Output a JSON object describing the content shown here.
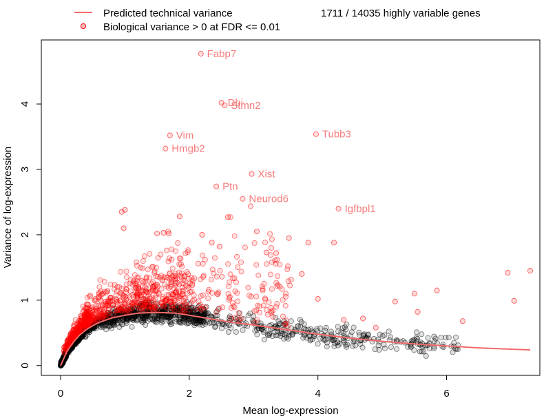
{
  "chart_data": {
    "type": "scatter",
    "title": "",
    "xlabel": "Mean log-expression",
    "ylabel": "Variance of log-expression",
    "xlim": [
      -0.3,
      7.45
    ],
    "ylim": [
      -0.15,
      4.98
    ],
    "x_ticks": [
      "0",
      "2",
      "4",
      "6"
    ],
    "y_ticks": [
      "0",
      "1",
      "2",
      "3",
      "4"
    ],
    "grid": false,
    "legend": {
      "position": "top-left",
      "items": [
        {
          "label": "Predicted technical variance",
          "kind": "line",
          "color": "#f46a6a"
        },
        {
          "label": "Biological variance > 0 at FDR <= 0.01",
          "kind": "point",
          "color": "#ff0000"
        }
      ]
    },
    "summary_text": "1711 / 14035 highly variable genes",
    "colors": {
      "hvg": "#ff0000",
      "other": "#000000",
      "trend": "#f46a6a",
      "gene_label": "#f47a7a"
    },
    "trend": {
      "name": "Predicted technical variance",
      "x": [
        0,
        0.1,
        0.2,
        0.3,
        0.4,
        0.5,
        0.6,
        0.8,
        1.0,
        1.2,
        1.4,
        1.6,
        1.8,
        2.0,
        2.3,
        2.6,
        3.0,
        3.5,
        4.0,
        4.5,
        5.0,
        5.5,
        6.0,
        6.5,
        7.0,
        7.3
      ],
      "y": [
        0.0,
        0.22,
        0.36,
        0.47,
        0.55,
        0.61,
        0.66,
        0.73,
        0.77,
        0.8,
        0.81,
        0.81,
        0.8,
        0.77,
        0.72,
        0.67,
        0.62,
        0.55,
        0.48,
        0.42,
        0.37,
        0.33,
        0.3,
        0.27,
        0.25,
        0.24
      ]
    },
    "labeled_genes": [
      {
        "name": "Fabp7",
        "x": 2.18,
        "y": 4.77
      },
      {
        "name": "Dbi",
        "x": 2.5,
        "y": 4.02
      },
      {
        "name": "Stmn2",
        "x": 2.55,
        "y": 3.98
      },
      {
        "name": "Tubb3",
        "x": 3.97,
        "y": 3.54
      },
      {
        "name": "Vim",
        "x": 1.7,
        "y": 3.52
      },
      {
        "name": "Hmgb2",
        "x": 1.63,
        "y": 3.32
      },
      {
        "name": "Xist",
        "x": 2.97,
        "y": 2.93
      },
      {
        "name": "Ptn",
        "x": 2.42,
        "y": 2.74
      },
      {
        "name": "Neurod6",
        "x": 2.83,
        "y": 2.55
      },
      {
        "name": "Igfbpl1",
        "x": 4.32,
        "y": 2.4
      }
    ],
    "hvg_outliers": {
      "x": [
        0.95,
        1.0,
        0.98,
        1.5,
        1.6,
        1.68,
        1.85,
        2.2,
        2.35,
        2.47,
        2.6,
        3.05,
        3.2,
        3.35,
        3.55,
        3.75,
        3.85,
        4.0,
        4.25,
        4.4,
        4.7,
        4.9,
        5.2,
        5.5,
        5.55,
        5.85,
        6.25,
        6.95,
        7.05,
        7.3
      ],
      "y": [
        2.35,
        2.38,
        2.1,
        2.02,
        2.03,
        2.02,
        2.28,
        2.0,
        1.88,
        1.82,
        2.27,
        2.05,
        1.73,
        1.72,
        1.95,
        1.4,
        1.88,
        1.02,
        1.88,
        0.7,
        0.72,
        0.58,
        0.98,
        1.1,
        0.82,
        1.15,
        0.68,
        1.42,
        0.99,
        1.45
      ]
    },
    "bulk_series_note": "Dense cloud of non-significant genes (black) and significant genes (red) following the trend; generated by script"
  }
}
